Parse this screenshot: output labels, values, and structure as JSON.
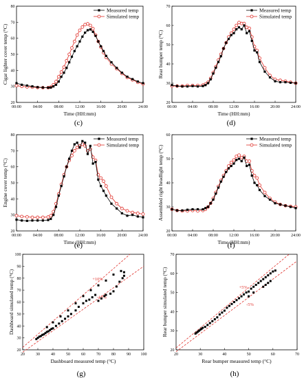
{
  "chart_data": [
    {
      "panel": "(c)",
      "type": "line",
      "xlabel": "Time (HH:mm)",
      "ylabel": "Cigar lighter cover temp (°C)",
      "x_ticks": [
        "00:00",
        "04:00",
        "08:00",
        "12:00",
        "16:00",
        "20:00",
        "24:00"
      ],
      "y_ticks": [
        20,
        30,
        40,
        50,
        60,
        70,
        80
      ],
      "xlim": [
        0,
        24
      ],
      "ylim": [
        20,
        80
      ],
      "legend_position": "top-right",
      "series": [
        {
          "name": "Measured temp",
          "marker": "filled-square",
          "color": "#000000",
          "x": [
            0,
            1,
            2,
            3,
            4,
            5,
            6,
            6.5,
            7,
            7.5,
            8,
            8.5,
            9,
            9.5,
            10,
            10.5,
            11,
            11.5,
            12,
            12.5,
            13,
            13.5,
            14,
            14.5,
            15,
            15.5,
            16,
            16.5,
            17,
            18,
            19,
            20,
            21,
            22,
            23,
            24
          ],
          "y": [
            32,
            31,
            30.5,
            30,
            29.5,
            29.3,
            29.2,
            29.3,
            30,
            31,
            33,
            36,
            38.5,
            41.5,
            45,
            48.5,
            52,
            55,
            58,
            61,
            63.5,
            65,
            65.5,
            64,
            61.5,
            58,
            55,
            52,
            49,
            45,
            41.5,
            38.5,
            36,
            34.5,
            33,
            32
          ]
        },
        {
          "name": "Simulated temp",
          "marker": "open-circle",
          "color": "#e0312b",
          "x": [
            0,
            1,
            2,
            3,
            4,
            5,
            6,
            6.5,
            7,
            7.5,
            8,
            8.5,
            9,
            9.5,
            10,
            10.5,
            11,
            11.5,
            12,
            12.5,
            13,
            13.5,
            14,
            14.5,
            15,
            15.5,
            16,
            16.5,
            17,
            18,
            19,
            20,
            21,
            22,
            23,
            24
          ],
          "y": [
            30.5,
            30,
            29.7,
            29.5,
            29.3,
            29.2,
            29.2,
            29.5,
            31,
            33,
            36,
            39,
            42,
            46,
            50,
            54,
            58,
            62,
            65,
            67,
            68.5,
            69,
            68,
            66,
            62,
            58,
            54.5,
            51,
            48,
            44,
            41,
            38,
            35.5,
            34,
            32.5,
            31.5
          ]
        }
      ]
    },
    {
      "panel": "(d)",
      "type": "line",
      "xlabel": "Time (HH:mm)",
      "ylabel": "Rear bumper temp (°C)",
      "x_ticks": [
        "00:00",
        "04:00",
        "08:00",
        "12:00",
        "16:00",
        "20:00",
        "24:00"
      ],
      "y_ticks": [
        20,
        30,
        40,
        50,
        60,
        70
      ],
      "xlim": [
        0,
        24
      ],
      "ylim": [
        20,
        70
      ],
      "legend_position": "top-right",
      "series": [
        {
          "name": "Measured temp",
          "marker": "filled-square",
          "color": "#000000",
          "x": [
            0,
            1,
            2,
            3,
            4,
            5,
            6,
            6.5,
            7,
            7.5,
            8,
            8.5,
            9,
            9.5,
            10,
            10.5,
            11,
            11.5,
            12,
            12.5,
            13,
            13.5,
            14,
            14.5,
            15,
            15.5,
            16,
            16.5,
            17,
            18,
            19,
            20,
            21,
            22,
            23,
            24
          ],
          "y": [
            29,
            28.5,
            28.3,
            28.3,
            28.5,
            28.3,
            28.5,
            29,
            30,
            32,
            35,
            38,
            41,
            44,
            48,
            51,
            53,
            55,
            56,
            58,
            59,
            58,
            60,
            56,
            57,
            52,
            47,
            46,
            41,
            36,
            33,
            31,
            30.5,
            30.5,
            30.2,
            30
          ]
        },
        {
          "name": "Simulated temp",
          "marker": "open-circle",
          "color": "#e0312b",
          "x": [
            0,
            1,
            2,
            3,
            4,
            5,
            6,
            6.5,
            7,
            7.5,
            8,
            8.5,
            9,
            9.5,
            10,
            10.5,
            11,
            11.5,
            12,
            12.5,
            13,
            13.5,
            14,
            14.5,
            15,
            15.5,
            16,
            16.5,
            17,
            18,
            19,
            20,
            21,
            22,
            23,
            24
          ],
          "y": [
            28.5,
            28.5,
            28.5,
            28.8,
            28.8,
            28.8,
            29,
            29.5,
            30.5,
            32.5,
            35.5,
            38.5,
            42,
            45,
            48,
            51,
            54,
            56,
            58,
            60,
            61.5,
            61,
            61,
            59,
            58.5,
            54,
            49,
            47,
            43,
            38,
            34,
            32,
            31.5,
            31,
            30.5,
            30
          ]
        }
      ]
    },
    {
      "panel": "(e)",
      "type": "line",
      "xlabel": "Time (HH:mm)",
      "ylabel": "Engine cover temp (°C)",
      "x_ticks": [
        "00:00",
        "04:00",
        "08:00",
        "12:00",
        "16:00",
        "20:00",
        "24:00"
      ],
      "y_ticks": [
        20,
        30,
        40,
        50,
        60,
        70,
        80
      ],
      "xlim": [
        0,
        24
      ],
      "ylim": [
        20,
        80
      ],
      "legend_position": "top-right",
      "series": [
        {
          "name": "Measured temp",
          "marker": "filled-square",
          "color": "#000000",
          "x": [
            0,
            1,
            2,
            3,
            4,
            5,
            6,
            6.5,
            7,
            7.5,
            8,
            8.5,
            9,
            9.5,
            10,
            10.5,
            11,
            11.5,
            12,
            12.5,
            13,
            13.5,
            14,
            14.5,
            15,
            15.5,
            16,
            16.5,
            17,
            18,
            19,
            20,
            21,
            22,
            23,
            24
          ],
          "y": [
            27,
            26.5,
            26.3,
            26.5,
            26.5,
            26.5,
            26.8,
            27.5,
            30,
            35,
            42,
            48,
            54,
            60,
            65,
            70,
            74,
            75,
            72,
            76,
            75,
            68,
            73,
            62,
            63,
            52,
            48,
            45,
            42,
            37,
            34,
            31,
            29.5,
            30,
            29,
            28.5
          ]
        },
        {
          "name": "Simulated temp",
          "marker": "open-circle",
          "color": "#e0312b",
          "x": [
            0,
            1,
            2,
            3,
            4,
            5,
            6,
            6.5,
            7,
            7.5,
            8,
            8.5,
            9,
            9.5,
            10,
            10.5,
            11,
            11.5,
            12,
            12.5,
            13,
            13.5,
            14,
            14.5,
            15,
            15.5,
            16,
            16.5,
            17,
            18,
            19,
            20,
            21,
            22,
            23,
            24
          ],
          "y": [
            29.5,
            29,
            28.8,
            28.5,
            28.5,
            28.5,
            28.7,
            29.5,
            32,
            37,
            43,
            49,
            55,
            60,
            64,
            67,
            70,
            72,
            73,
            74,
            73,
            70,
            71,
            66,
            64,
            55,
            53,
            51,
            48,
            41,
            37,
            34,
            32.5,
            31.5,
            31,
            30.5
          ]
        }
      ]
    },
    {
      "panel": "(f)",
      "type": "line",
      "xlabel": "Time (HH:mm)",
      "ylabel": "Assembled right headlight temp (°C)",
      "x_ticks": [
        "00:00",
        "04:00",
        "08:00",
        "12:00",
        "16:00",
        "20:00",
        "24:00"
      ],
      "y_ticks": [
        20,
        30,
        40,
        50,
        60
      ],
      "xlim": [
        0,
        24
      ],
      "ylim": [
        20,
        60
      ],
      "legend_position": "top-right",
      "series": [
        {
          "name": "Measured temp",
          "marker": "filled-square",
          "color": "#000000",
          "x": [
            0,
            1,
            2,
            3,
            4,
            5,
            6,
            6.5,
            7,
            7.5,
            8,
            8.5,
            9,
            9.5,
            10,
            10.5,
            11,
            11.5,
            12,
            12.5,
            13,
            13.5,
            14,
            14.5,
            15,
            15.5,
            16,
            16.5,
            17,
            18,
            19,
            20,
            21,
            22,
            23,
            24
          ],
          "y": [
            29,
            28.5,
            28.5,
            28.8,
            29,
            29,
            29,
            29.5,
            30,
            31.5,
            33,
            35.5,
            38,
            40.5,
            42.5,
            44.5,
            46,
            47,
            48,
            49.5,
            50,
            49,
            50.5,
            47,
            47.5,
            43,
            40,
            39,
            37,
            34.5,
            33,
            31.5,
            31,
            30.5,
            30,
            29.5
          ]
        },
        {
          "name": "Simulated temp",
          "marker": "open-circle",
          "color": "#e0312b",
          "x": [
            0,
            1,
            2,
            3,
            4,
            5,
            6,
            6.5,
            7,
            7.5,
            8,
            8.5,
            9,
            9.5,
            10,
            10.5,
            11,
            11.5,
            12,
            12.5,
            13,
            13.5,
            14,
            14.5,
            15,
            15.5,
            16,
            16.5,
            17,
            18,
            19,
            20,
            21,
            22,
            23,
            24
          ],
          "y": [
            29,
            28.5,
            28.3,
            28.3,
            28.5,
            28.3,
            28.5,
            29,
            30,
            31.5,
            33.5,
            36,
            38.5,
            41,
            43,
            45,
            47,
            48.5,
            49.5,
            51,
            51.5,
            50.5,
            51,
            49,
            49,
            45,
            43,
            42,
            39,
            36,
            33.5,
            32,
            31,
            30.5,
            30.2,
            30
          ]
        }
      ]
    },
    {
      "panel": "(g)",
      "type": "scatter",
      "xlabel": "Dashboard  measured temp (°C)",
      "ylabel": "Dashboard  simulated temp (°C)",
      "x_ticks": [
        20,
        30,
        40,
        50,
        60,
        70,
        80,
        90,
        100
      ],
      "y_ticks": [
        20,
        30,
        40,
        50,
        60,
        70,
        80,
        90,
        100
      ],
      "xlim": [
        20,
        100
      ],
      "ylim": [
        20,
        100
      ],
      "bands": [
        {
          "label": "+10%",
          "slope": 1.1
        },
        {
          "label": "-10%",
          "slope": 0.9
        }
      ],
      "points": [
        [
          29,
          29
        ],
        [
          30,
          30
        ],
        [
          31,
          31
        ],
        [
          32,
          31.5
        ],
        [
          33,
          32.5
        ],
        [
          34,
          33
        ],
        [
          35,
          34
        ],
        [
          36,
          35
        ],
        [
          37,
          35.5
        ],
        [
          38,
          36.5
        ],
        [
          39,
          37.5
        ],
        [
          40,
          38
        ],
        [
          42,
          40
        ],
        [
          44,
          42
        ],
        [
          46,
          44
        ],
        [
          48,
          46
        ],
        [
          50,
          48
        ],
        [
          52,
          50
        ],
        [
          55,
          53
        ],
        [
          57,
          56
        ],
        [
          60,
          59
        ],
        [
          62,
          61
        ],
        [
          64,
          62
        ],
        [
          66,
          64
        ],
        [
          68,
          66
        ],
        [
          70,
          61
        ],
        [
          72,
          63
        ],
        [
          74,
          65
        ],
        [
          75,
          66
        ],
        [
          78,
          67
        ],
        [
          80,
          69
        ],
        [
          82,
          73
        ],
        [
          84,
          77
        ],
        [
          86,
          80
        ],
        [
          87,
          82
        ],
        [
          36,
          39
        ],
        [
          40,
          43
        ],
        [
          45,
          48
        ],
        [
          50,
          53
        ],
        [
          55,
          59
        ],
        [
          60,
          65
        ],
        [
          65,
          70
        ],
        [
          70,
          74
        ],
        [
          75,
          78
        ],
        [
          80,
          83
        ],
        [
          85,
          86
        ],
        [
          87,
          85
        ]
      ]
    },
    {
      "panel": "(h)",
      "type": "scatter",
      "xlabel": "Rear bumper measured temp (°C)",
      "ylabel": "Rear bumper simulated temp (°C)",
      "x_ticks": [
        20,
        30,
        40,
        50,
        60,
        70
      ],
      "y_ticks": [
        20,
        30,
        40,
        50,
        60,
        70
      ],
      "xlim": [
        20,
        70
      ],
      "ylim": [
        20,
        70
      ],
      "bands": [
        {
          "label": "+5%",
          "slope": 1.05
        },
        {
          "label": "-5%",
          "slope": 0.95
        }
      ],
      "points": [
        [
          28,
          28.5
        ],
        [
          28.5,
          29
        ],
        [
          29,
          29.5
        ],
        [
          29.5,
          30
        ],
        [
          30,
          30.5
        ],
        [
          30.5,
          31
        ],
        [
          31,
          31.5
        ],
        [
          32,
          32
        ],
        [
          33,
          33
        ],
        [
          34,
          34
        ],
        [
          35,
          35
        ],
        [
          36,
          36
        ],
        [
          37,
          37
        ],
        [
          38,
          38.5
        ],
        [
          39,
          39.5
        ],
        [
          40,
          40.5
        ],
        [
          41,
          42
        ],
        [
          42,
          43
        ],
        [
          43,
          44
        ],
        [
          44,
          45
        ],
        [
          45,
          46
        ],
        [
          46,
          47
        ],
        [
          47,
          48
        ],
        [
          48,
          49
        ],
        [
          49,
          50
        ],
        [
          50,
          50.5
        ],
        [
          51,
          52
        ],
        [
          52,
          53
        ],
        [
          53,
          54
        ],
        [
          54,
          55
        ],
        [
          55,
          56
        ],
        [
          56,
          57
        ],
        [
          57,
          58
        ],
        [
          58,
          59
        ],
        [
          59,
          60
        ],
        [
          60,
          61
        ],
        [
          61,
          61.5
        ],
        [
          56,
          53
        ],
        [
          57,
          54
        ],
        [
          58,
          55
        ],
        [
          59,
          56
        ],
        [
          52,
          50
        ],
        [
          50,
          48
        ]
      ]
    }
  ]
}
